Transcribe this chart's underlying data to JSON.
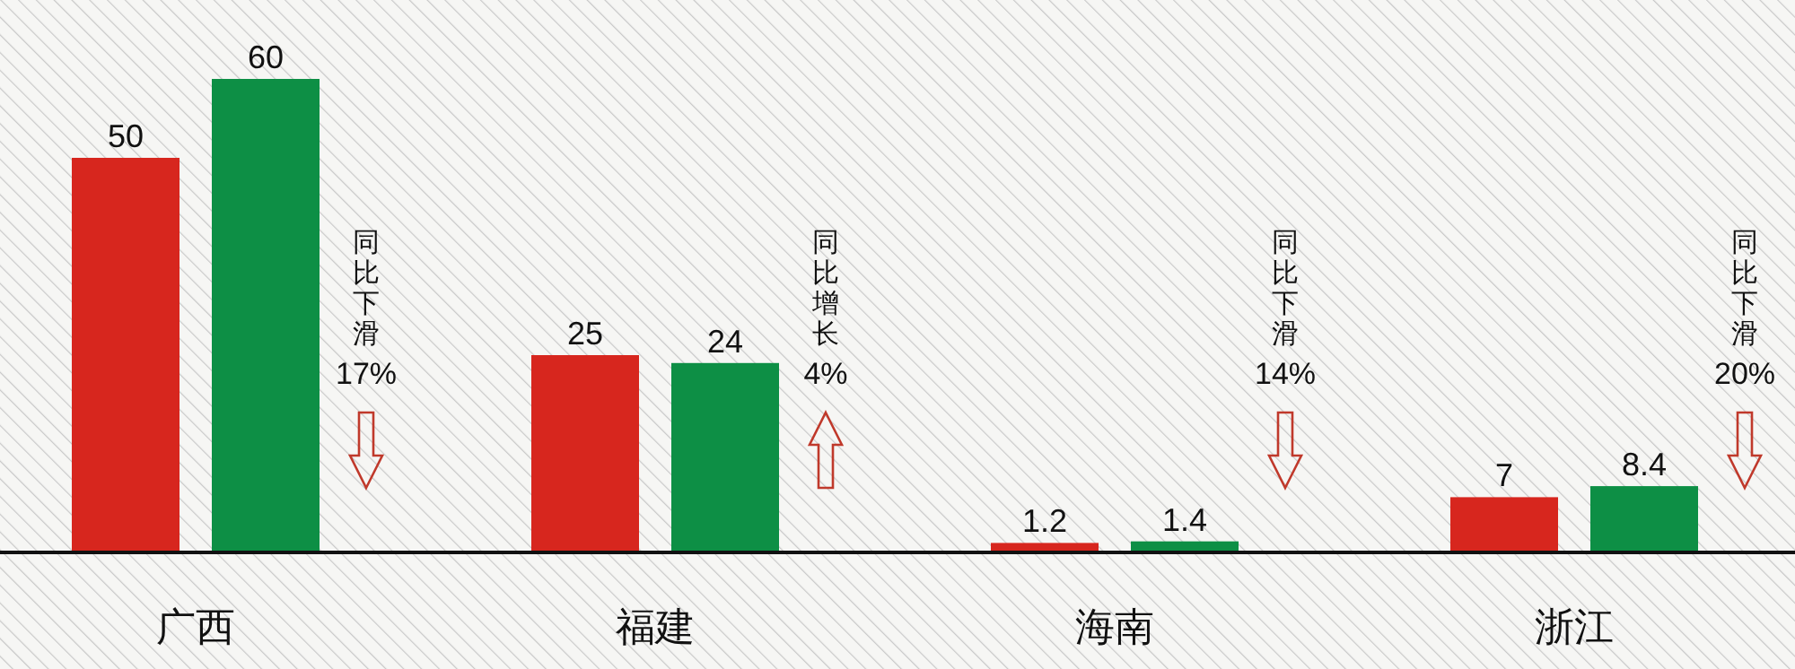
{
  "chart_data": {
    "type": "bar",
    "categories": [
      "广西",
      "福建",
      "海南",
      "浙江"
    ],
    "series": [
      {
        "color": "#d7261e",
        "values": [
          50,
          25,
          1.2,
          7
        ]
      },
      {
        "color": "#0d8f45",
        "values": [
          60,
          24,
          1.4,
          8.4
        ]
      }
    ],
    "data_labels": true,
    "annotations": [
      "同比下滑 17%",
      "同比增长 4%",
      "同比下滑 14%",
      "同比下滑 20%"
    ]
  }
}
